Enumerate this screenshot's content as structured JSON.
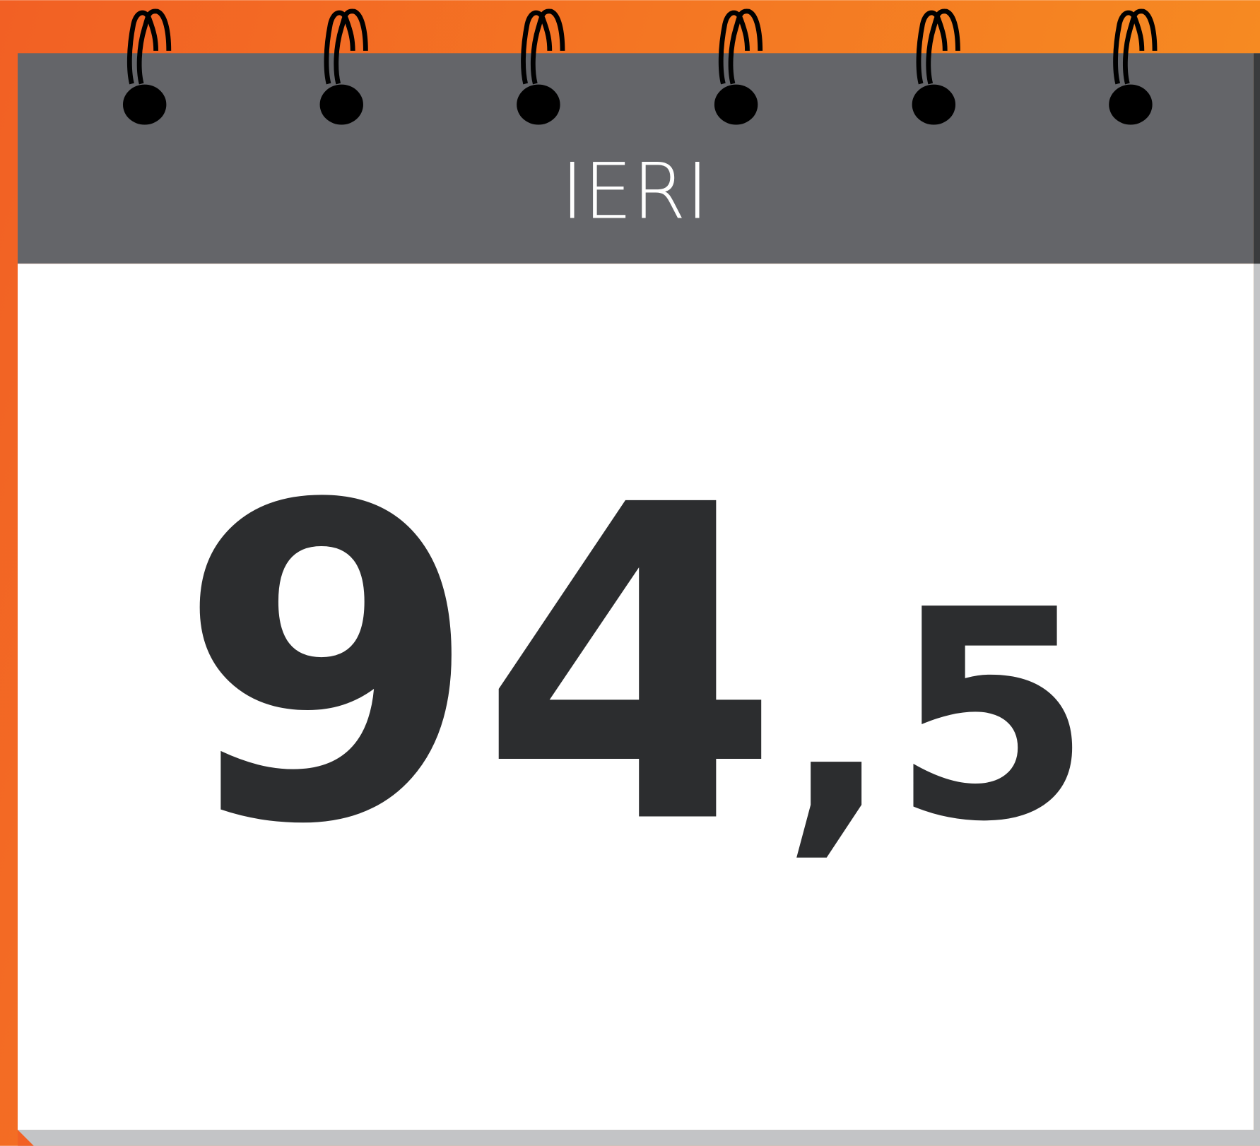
{
  "header": {
    "label": "IERI"
  },
  "value": {
    "integer": "94",
    "separator": ",",
    "decimal": "5"
  }
}
